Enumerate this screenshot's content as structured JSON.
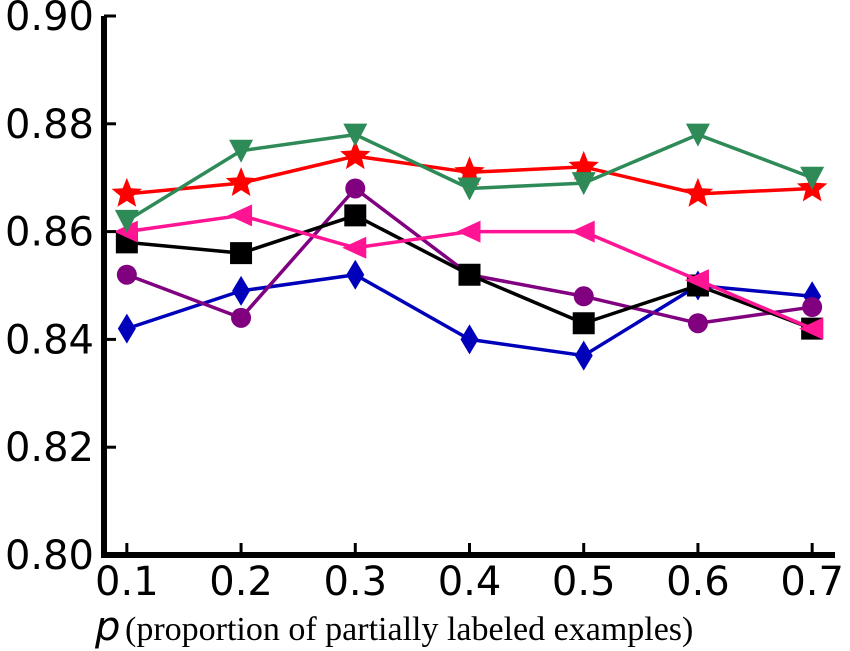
{
  "chart_data": {
    "type": "line",
    "title": "",
    "xlabel_var": "p",
    "xlabel_rest": "(proportion of partially labeled examples)",
    "ylabel": "",
    "x": [
      0.1,
      0.2,
      0.3,
      0.4,
      0.5,
      0.6,
      0.7
    ],
    "xticks": [
      "0.1",
      "0.2",
      "0.3",
      "0.4",
      "0.5",
      "0.6",
      "0.7"
    ],
    "yticks": [
      "0.80",
      "0.82",
      "0.84",
      "0.86",
      "0.88",
      "0.90"
    ],
    "ylim": [
      0.8,
      0.9
    ],
    "xlim": [
      0.08,
      0.72
    ],
    "grid": false,
    "legend": false,
    "series": [
      {
        "color": "#0000bb",
        "marker": "diamond",
        "values": [
          0.842,
          0.849,
          0.852,
          0.84,
          0.837,
          0.85,
          0.848
        ]
      },
      {
        "color": "#800080",
        "marker": "circle",
        "values": [
          0.852,
          0.844,
          0.868,
          0.852,
          0.848,
          0.843,
          0.846
        ]
      },
      {
        "color": "#000000",
        "marker": "square",
        "values": [
          0.858,
          0.856,
          0.863,
          0.852,
          0.843,
          0.85,
          0.842
        ]
      },
      {
        "color": "#ff1493",
        "marker": "triangle-left",
        "values": [
          0.86,
          0.863,
          0.857,
          0.86,
          0.86,
          0.851,
          0.842
        ]
      },
      {
        "color": "#ff0000",
        "marker": "star",
        "values": [
          0.867,
          0.869,
          0.874,
          0.871,
          0.872,
          0.867,
          0.868
        ]
      },
      {
        "color": "#2e8b57",
        "marker": "triangle-down",
        "values": [
          0.862,
          0.875,
          0.878,
          0.868,
          0.869,
          0.878,
          0.87
        ]
      }
    ]
  }
}
